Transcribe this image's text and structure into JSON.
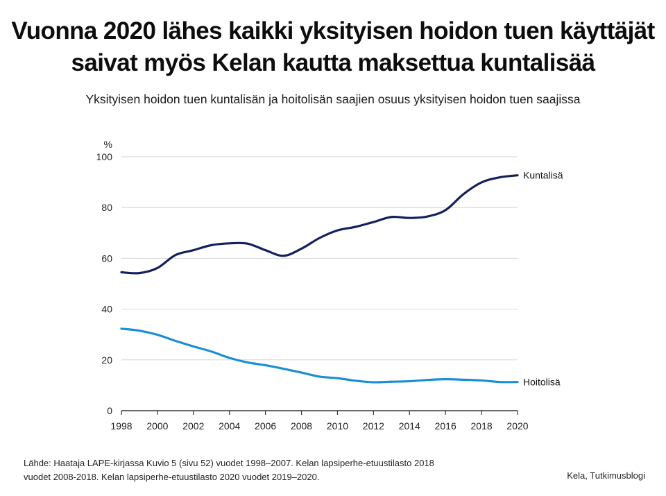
{
  "title_line1": "Vuonna 2020 lähes kaikki yksityisen hoidon tuen käyttäjät",
  "title_line2": "saivat myös Kelan kautta maksettua kuntalisää",
  "subtitle": "Yksityisen hoidon tuen kuntalisän ja hoitolisän saajien osuus yksityisen hoidon tuen saajissa",
  "source_line1": "Lähde: Haataja LAPE-kirjassa Kuvio 5 (sivu 52) vuodet 1998–2007. Kelan lapsiperhe-etuustilasto 2018",
  "source_line2": "vuodet 2008-2018. Kelan lapsiperhe-etuustilasto 2020 vuodet 2019–2020.",
  "credit": "Kela, Tutkimusblogi",
  "chart_data": {
    "type": "line",
    "ylabel": "%",
    "ylim": [
      0,
      100
    ],
    "yticks": [
      0,
      20,
      40,
      60,
      80,
      100
    ],
    "xlim": [
      1998,
      2020
    ],
    "xticks": [
      1998,
      2000,
      2002,
      2004,
      2006,
      2008,
      2010,
      2012,
      2014,
      2016,
      2018,
      2020
    ],
    "grid": "horizontal",
    "x": [
      1998,
      1999,
      2000,
      2001,
      2002,
      2003,
      2004,
      2005,
      2006,
      2007,
      2008,
      2009,
      2010,
      2011,
      2012,
      2013,
      2014,
      2015,
      2016,
      2017,
      2018,
      2019,
      2020
    ],
    "series": [
      {
        "name": "Kuntalisä",
        "color": "#14205e",
        "values": [
          54.5,
          54.2,
          56.2,
          61.3,
          63.2,
          65.2,
          65.9,
          65.8,
          63.2,
          61.0,
          63.8,
          68.0,
          71.0,
          72.4,
          74.3,
          76.3,
          75.9,
          76.5,
          79.0,
          85.3,
          89.9,
          91.9,
          92.7
        ]
      },
      {
        "name": "Hoitolisä",
        "color": "#1a8fd6",
        "values": [
          32.3,
          31.5,
          29.9,
          27.5,
          25.3,
          23.3,
          20.8,
          19.0,
          17.9,
          16.5,
          15.0,
          13.4,
          12.8,
          11.8,
          11.2,
          11.4,
          11.6,
          12.1,
          12.4,
          12.2,
          11.9,
          11.3,
          11.3
        ]
      }
    ]
  }
}
